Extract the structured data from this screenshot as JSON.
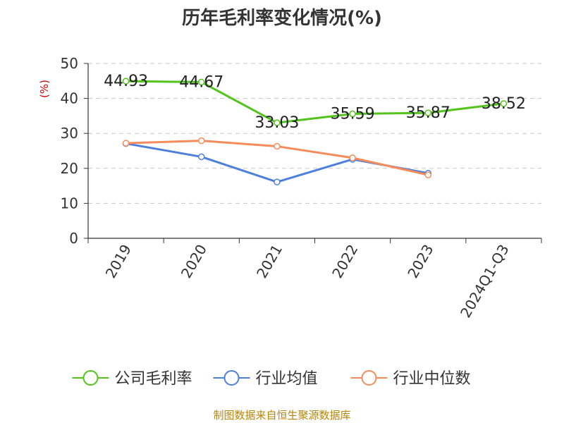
{
  "chart_data": {
    "type": "line",
    "title": "历年毛利率变化情况(%)",
    "ylabel": "(%)",
    "ylim": [
      0,
      50
    ],
    "yticks": [
      0,
      10,
      20,
      30,
      40,
      50
    ],
    "categories": [
      "2019",
      "2020",
      "2021",
      "2022",
      "2023",
      "2024Q1-Q3"
    ],
    "series": [
      {
        "name": "公司毛利率",
        "color": "#52c41a",
        "values": [
          44.93,
          44.67,
          33.03,
          35.59,
          35.87,
          38.52
        ],
        "labels": [
          "44.93",
          "44.67",
          "33.03",
          "35.59",
          "35.87",
          "38.52"
        ]
      },
      {
        "name": "行业均值",
        "color": "#4f7fdc",
        "values": [
          27.1,
          23.3,
          16.1,
          22.6,
          18.6,
          null
        ]
      },
      {
        "name": "行业中位数",
        "color": "#f58c5a",
        "values": [
          27.2,
          27.9,
          26.3,
          23.0,
          18.1,
          null
        ]
      }
    ],
    "grid": true,
    "legend_position": "bottom"
  },
  "source": "制图数据来自恒生聚源数据库"
}
